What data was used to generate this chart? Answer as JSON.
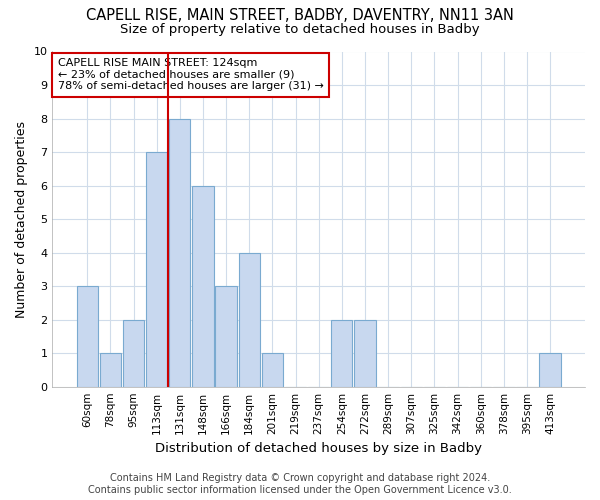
{
  "title": "CAPELL RISE, MAIN STREET, BADBY, DAVENTRY, NN11 3AN",
  "subtitle": "Size of property relative to detached houses in Badby",
  "xlabel": "Distribution of detached houses by size in Badby",
  "ylabel": "Number of detached properties",
  "categories": [
    "60sqm",
    "78sqm",
    "95sqm",
    "113sqm",
    "131sqm",
    "148sqm",
    "166sqm",
    "184sqm",
    "201sqm",
    "219sqm",
    "237sqm",
    "254sqm",
    "272sqm",
    "289sqm",
    "307sqm",
    "325sqm",
    "342sqm",
    "360sqm",
    "378sqm",
    "395sqm",
    "413sqm"
  ],
  "values": [
    3,
    1,
    2,
    7,
    8,
    6,
    3,
    4,
    1,
    0,
    0,
    2,
    2,
    0,
    0,
    0,
    0,
    0,
    0,
    0,
    1
  ],
  "bar_color": "#c8d8ef",
  "bar_edge_color": "#7aaad0",
  "red_line_x": 4,
  "annotation_title": "CAPELL RISE MAIN STREET: 124sqm",
  "annotation_line1": "← 23% of detached houses are smaller (9)",
  "annotation_line2": "78% of semi-detached houses are larger (31) →",
  "annotation_box_color": "#ffffff",
  "annotation_box_edge": "#cc0000",
  "red_line_color": "#cc0000",
  "ylim": [
    0,
    10
  ],
  "yticks": [
    0,
    1,
    2,
    3,
    4,
    5,
    6,
    7,
    8,
    9,
    10
  ],
  "footer1": "Contains HM Land Registry data © Crown copyright and database right 2024.",
  "footer2": "Contains public sector information licensed under the Open Government Licence v3.0.",
  "background_color": "#ffffff",
  "grid_color": "#d0dcea",
  "title_fontsize": 10.5,
  "subtitle_fontsize": 9.5,
  "tick_fontsize": 7.5,
  "ylabel_fontsize": 9,
  "xlabel_fontsize": 9.5,
  "annotation_fontsize": 8,
  "footer_fontsize": 7
}
